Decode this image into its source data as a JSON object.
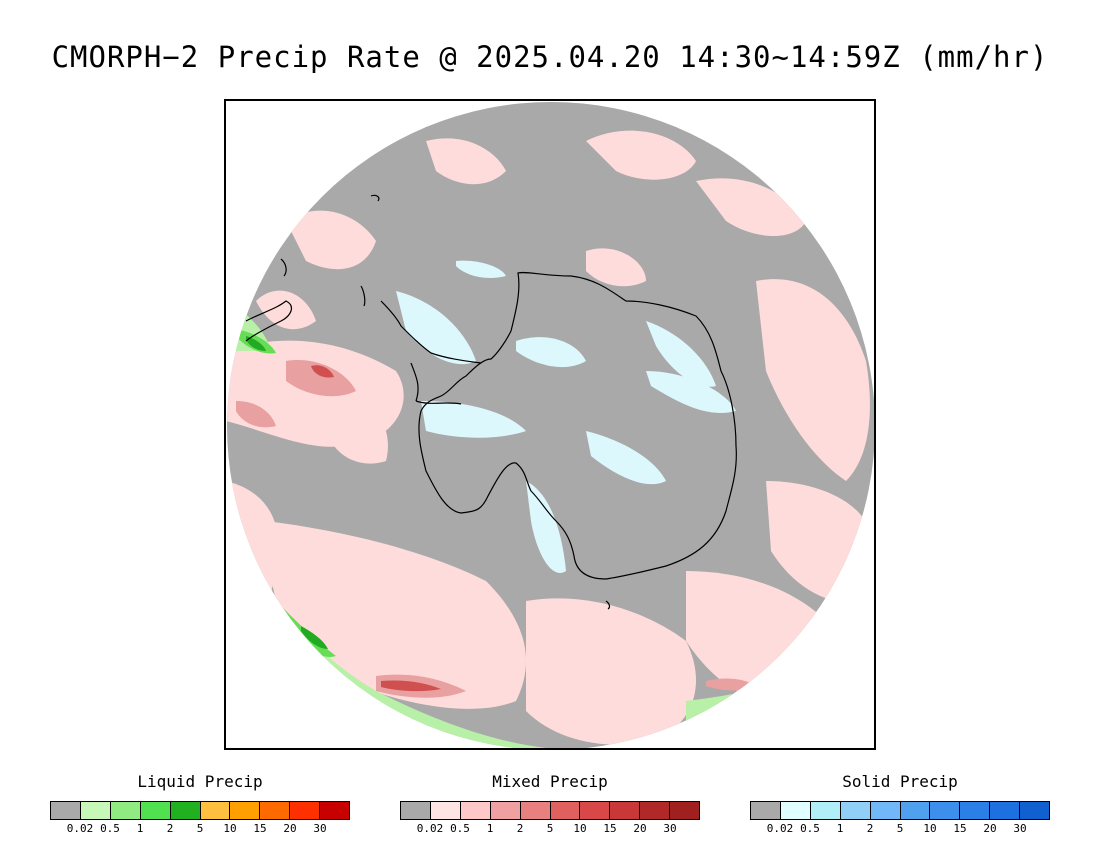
{
  "title": "CMORPH−2 Precip Rate @ 2025.04.20 14:30~14:59Z (mm/hr)",
  "map": {
    "projection": "south polar stereographic",
    "colors": {
      "background_gray": "#a9a9a9",
      "mixed_light": "#ffdcdc",
      "mixed_mid": "#f5a0a0",
      "mixed_high": "#d05050",
      "liquid_light": "#b8f0a8",
      "liquid_mid": "#66dd55",
      "liquid_high": "#22aa22",
      "solid_light": "#ddf8fc",
      "coastline": "#000000"
    }
  },
  "legends": [
    {
      "title": "Liquid Precip",
      "ticks": [
        "0.02",
        "0.5",
        "1",
        "2",
        "5",
        "10",
        "15",
        "20",
        "30"
      ],
      "colors": [
        "#a9a9a9",
        "#c8f8b8",
        "#90ec80",
        "#50e050",
        "#20b020",
        "#ffc040",
        "#ffa000",
        "#ff6a00",
        "#ff3000",
        "#c80000"
      ]
    },
    {
      "title": "Mixed Precip",
      "ticks": [
        "0.02",
        "0.5",
        "1",
        "2",
        "5",
        "10",
        "15",
        "20",
        "30"
      ],
      "colors": [
        "#a9a9a9",
        "#ffe4e4",
        "#ffc8c8",
        "#f0a0a0",
        "#e88080",
        "#e06060",
        "#d84848",
        "#c83838",
        "#b02828",
        "#a02020"
      ]
    },
    {
      "title": "Solid Precip",
      "ticks": [
        "0.02",
        "0.5",
        "1",
        "2",
        "5",
        "10",
        "15",
        "20",
        "30"
      ],
      "colors": [
        "#a9a9a9",
        "#e0ffff",
        "#b0eef8",
        "#90d0f8",
        "#70b8f8",
        "#50a0f0",
        "#3c90ec",
        "#2a80e6",
        "#1c70e0",
        "#1060d0"
      ]
    }
  ]
}
